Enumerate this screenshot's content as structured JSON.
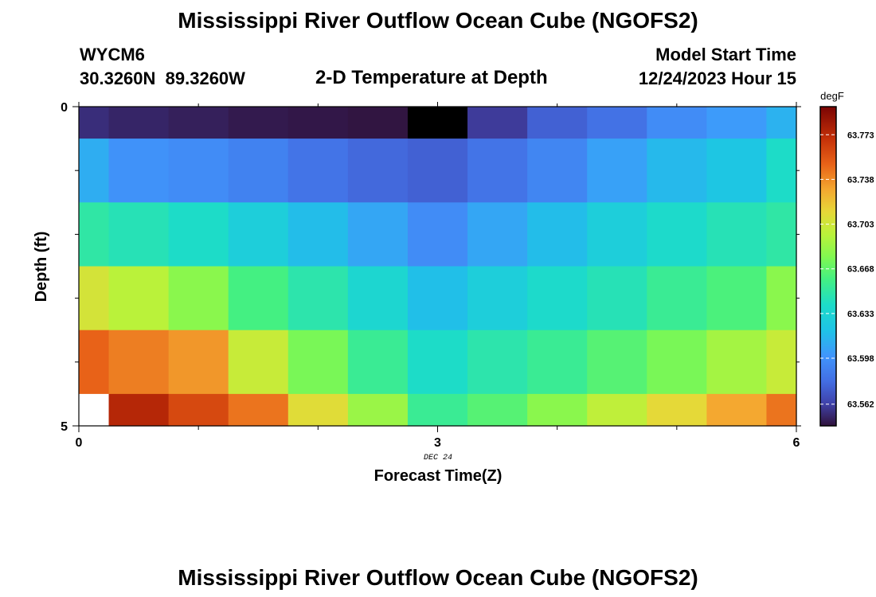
{
  "header": {
    "title": "Mississippi River Outflow Ocean Cube (NGOFS2)",
    "station": "WYCM6",
    "coords": "30.3260N  89.3260W",
    "subtitle": "2-D Temperature at Depth",
    "model_start_label": "Model Start Time",
    "model_start_value": "12/24/2023 Hour 15"
  },
  "footer": {
    "title": "Mississippi River Outflow Ocean Cube (NGOFS2)"
  },
  "chart_data": {
    "type": "heatmap",
    "xlabel": "Forecast Time(Z)",
    "ylabel": "Depth (ft)",
    "x_date_label": "DEC 24",
    "xlim": [
      0,
      6
    ],
    "ylim": [
      0,
      5
    ],
    "x_ticks": [
      "0",
      "3",
      "6"
    ],
    "y_ticks": [
      "0",
      "5"
    ],
    "colorbar": {
      "unit": "degF",
      "ticks": [
        "63.773",
        "63.738",
        "63.703",
        "63.668",
        "63.633",
        "63.598",
        "63.562"
      ],
      "range": [
        63.545,
        63.795
      ]
    },
    "x_centers": [
      0,
      0.5,
      1,
      1.5,
      2,
      2.5,
      3,
      3.5,
      4,
      4.5,
      5,
      5.5,
      6
    ],
    "depth_bands": [
      [
        0,
        0.5
      ],
      [
        0.5,
        1.5
      ],
      [
        1.5,
        2.5
      ],
      [
        2.5,
        3.5
      ],
      [
        3.5,
        4.5
      ],
      [
        4.5,
        5
      ]
    ],
    "values": [
      [
        63.555,
        63.552,
        63.55,
        63.548,
        63.547,
        63.546,
        null,
        63.56,
        63.575,
        63.582,
        63.595,
        63.602,
        63.612
      ],
      [
        63.61,
        63.598,
        63.595,
        63.59,
        63.583,
        63.578,
        63.575,
        63.583,
        63.592,
        63.605,
        63.615,
        63.622,
        63.64
      ],
      [
        63.65,
        63.645,
        63.64,
        63.628,
        63.617,
        63.607,
        63.595,
        63.607,
        63.617,
        63.628,
        63.638,
        63.645,
        63.65
      ],
      [
        63.705,
        63.695,
        63.68,
        63.66,
        63.648,
        63.635,
        63.618,
        63.628,
        63.638,
        63.645,
        63.655,
        63.662,
        63.68
      ],
      [
        63.75,
        63.742,
        63.735,
        63.7,
        63.675,
        63.655,
        63.64,
        63.648,
        63.655,
        63.665,
        63.675,
        63.688,
        63.7
      ],
      [
        null,
        63.775,
        63.76,
        63.745,
        63.71,
        63.685,
        63.655,
        63.665,
        63.68,
        63.697,
        63.712,
        63.73,
        63.745
      ]
    ]
  }
}
